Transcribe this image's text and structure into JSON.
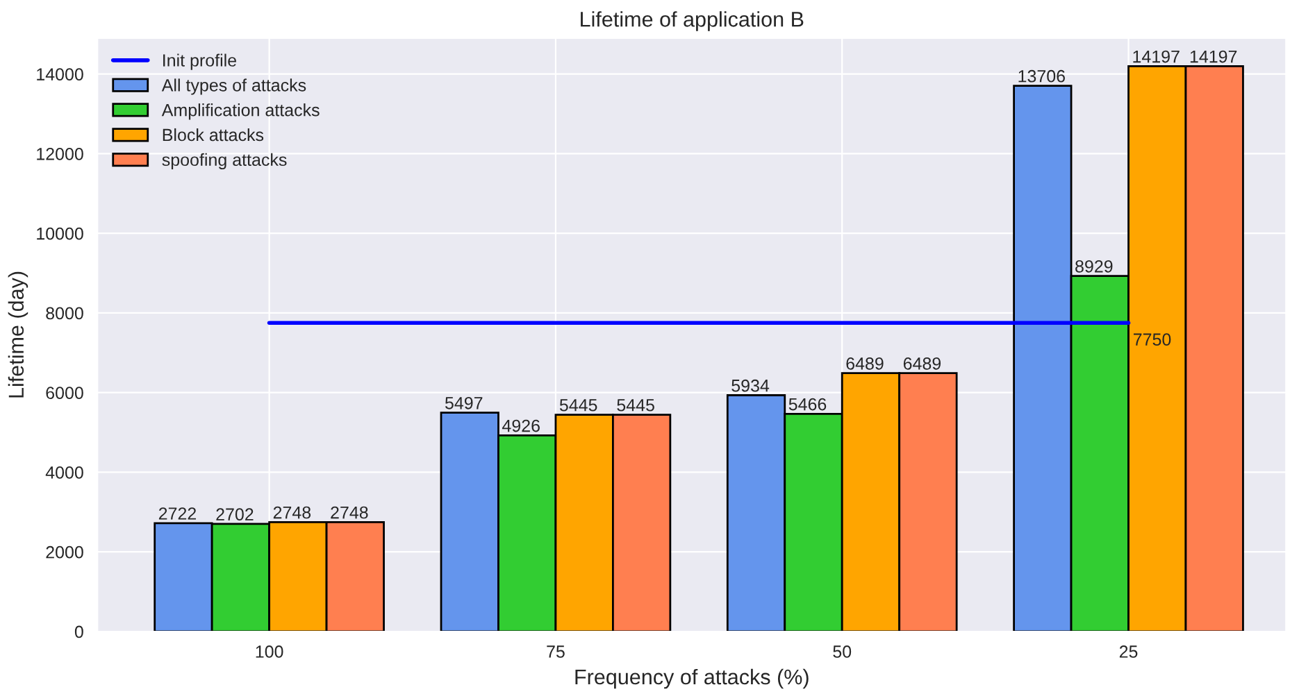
{
  "chart_data": {
    "type": "bar",
    "title": "Lifetime of application B",
    "xlabel": "Frequency of attacks (%)",
    "ylabel": "Lifetime (day)",
    "categories": [
      "100",
      "75",
      "50",
      "25"
    ],
    "series": [
      {
        "name": "Init profile",
        "type": "line",
        "color": "#0000ff",
        "values": [
          7750,
          7750,
          7750,
          7750
        ],
        "value_labels": [
          null,
          null,
          null,
          "7750"
        ]
      },
      {
        "name": "All types of attacks",
        "color": "#6495ed",
        "values": [
          2722,
          5497,
          5934,
          13706
        ]
      },
      {
        "name": "Amplification attacks",
        "color": "#32cd32",
        "values": [
          2702,
          4926,
          5466,
          8929
        ]
      },
      {
        "name": "Block attacks",
        "color": "#ffa500",
        "values": [
          2748,
          5445,
          6489,
          14197
        ]
      },
      {
        "name": "spoofing attacks",
        "color": "#ff7f50",
        "values": [
          2748,
          5445,
          6489,
          14197
        ]
      }
    ],
    "ylim": [
      0,
      14900
    ],
    "yticks": [
      0,
      2000,
      4000,
      6000,
      8000,
      10000,
      12000,
      14000
    ],
    "grid": true,
    "legend": "top left",
    "data_labels": true
  }
}
